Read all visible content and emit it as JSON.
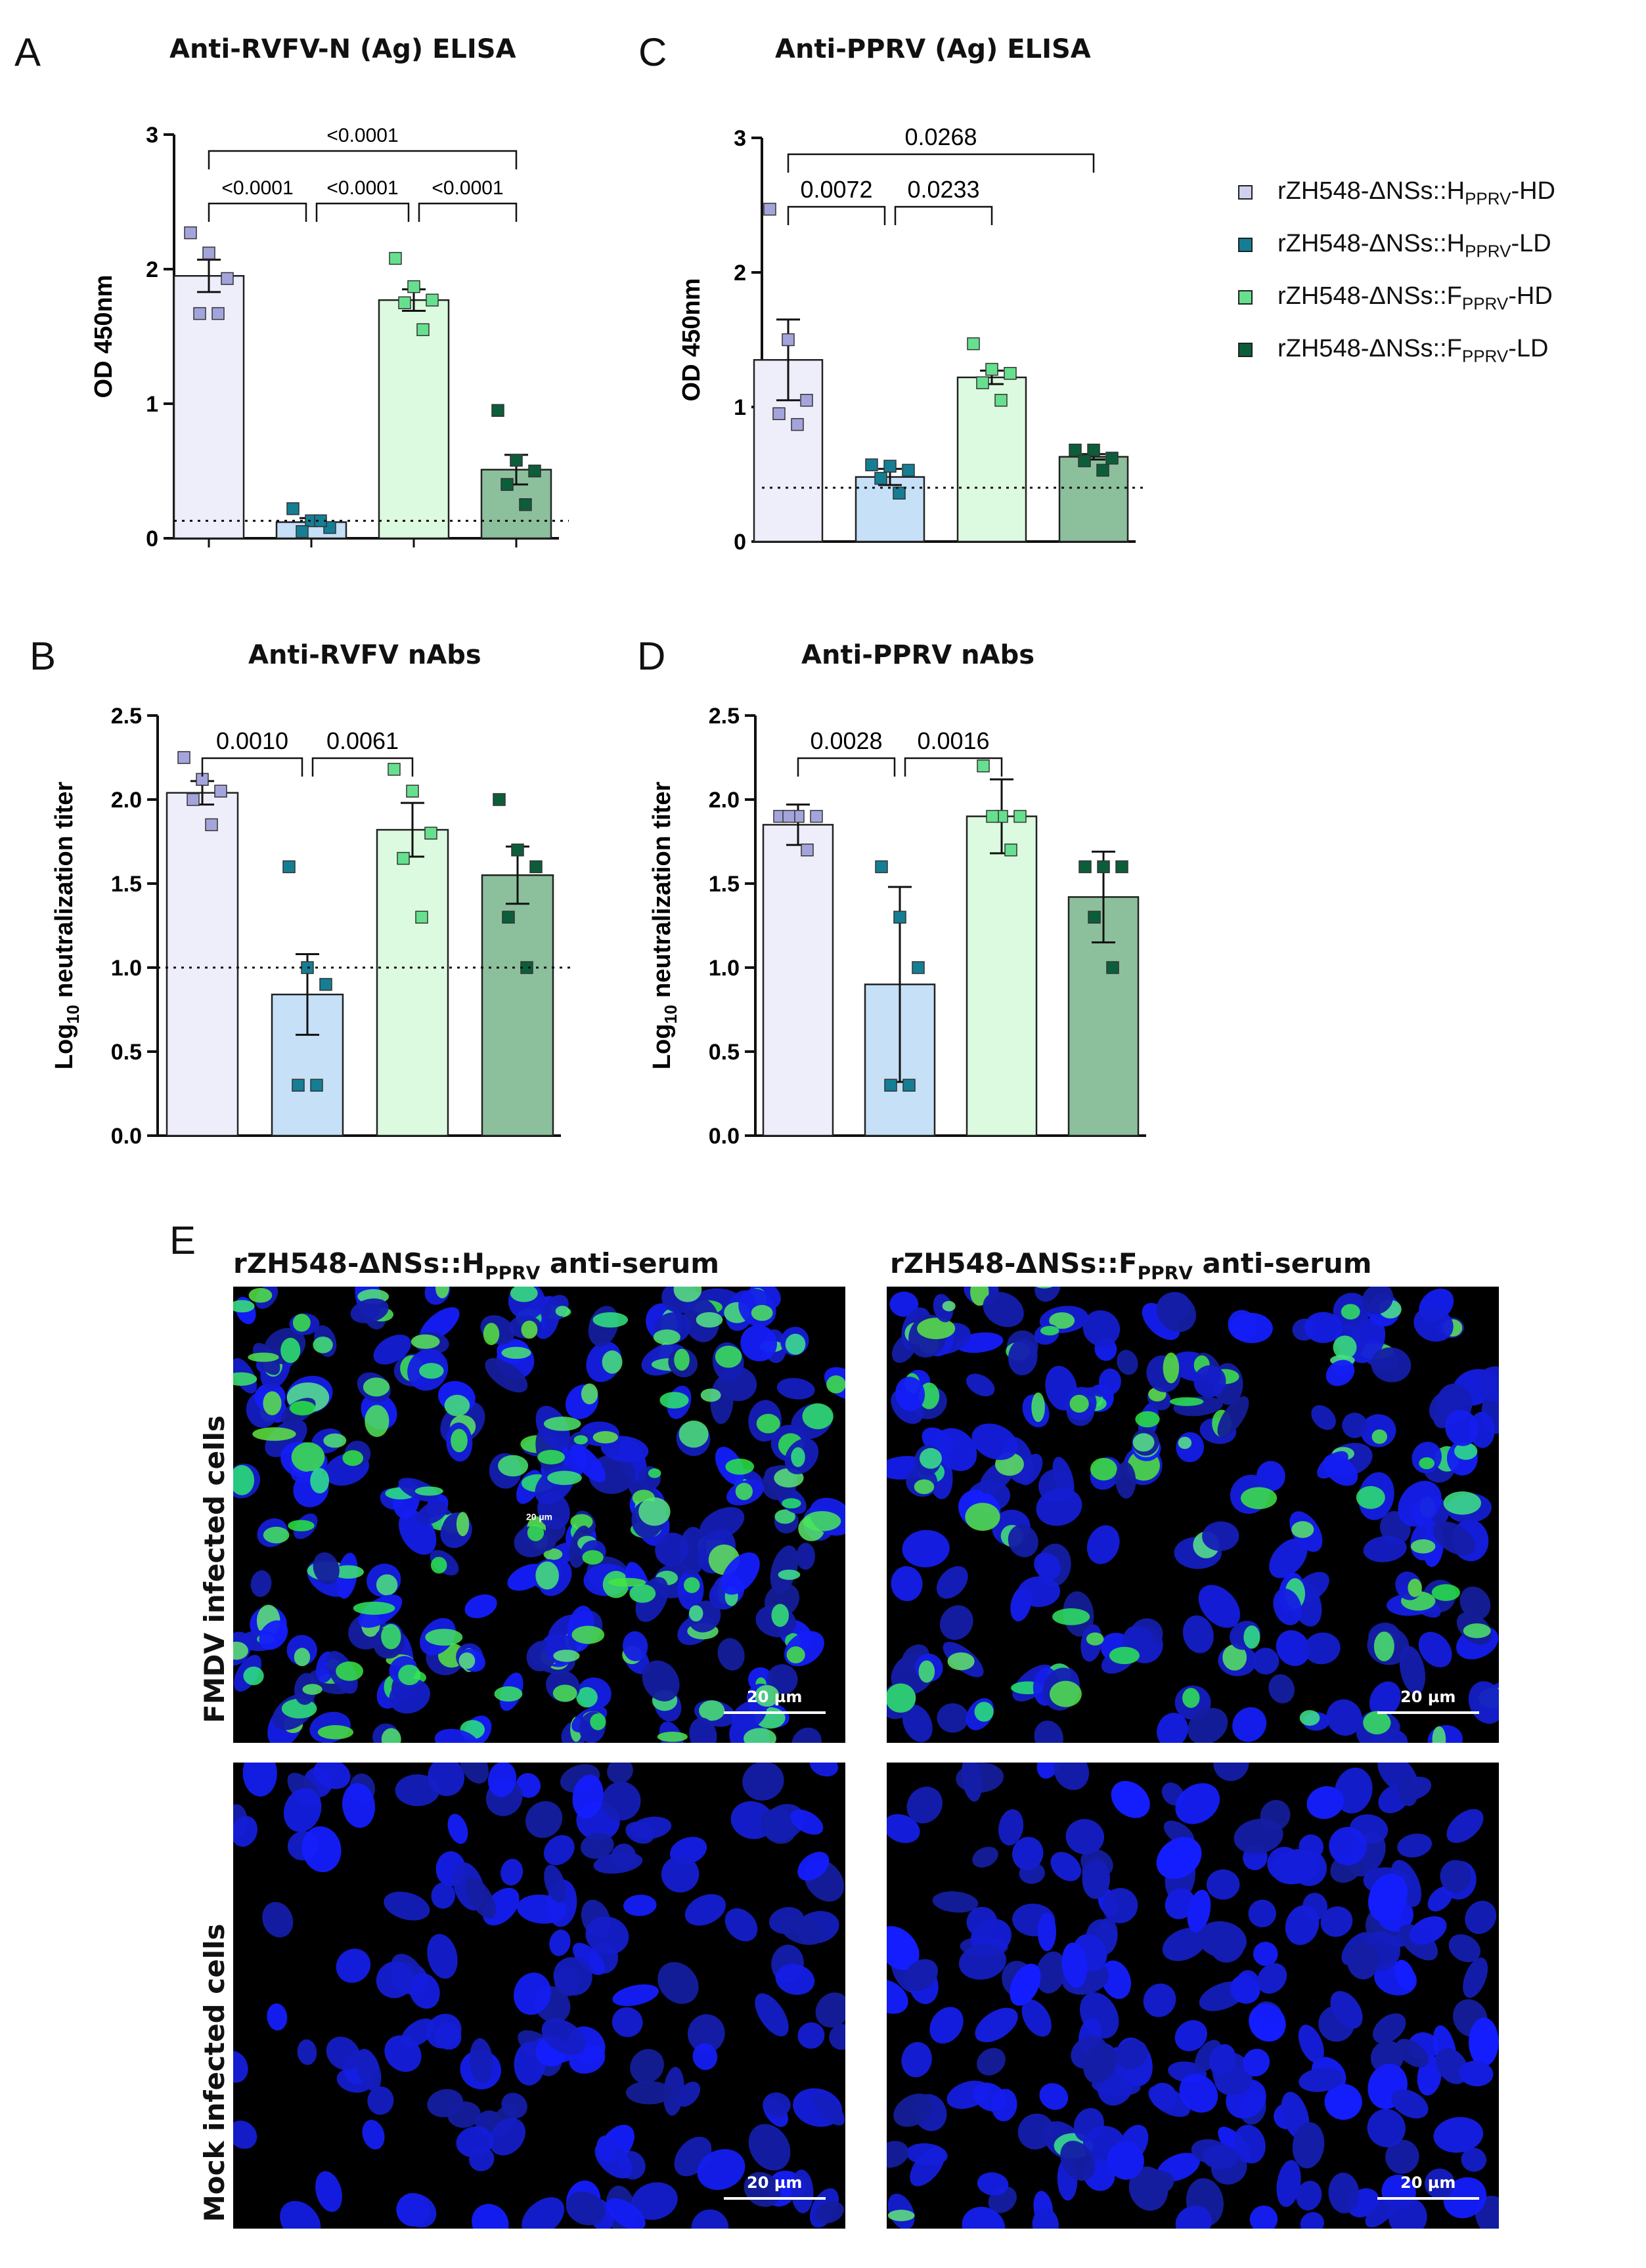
{
  "colors": {
    "H_HD": "#eeeefb",
    "H_LD": "#c5e0f7",
    "F_HD": "#dcfadf",
    "F_LD": "#8cc09c",
    "pt_H_HD": "#a4a4dc",
    "pt_H_LD": "#157e95",
    "pt_F_HD": "#66e08f",
    "pt_F_LD": "#0c5e3a"
  },
  "legend": [
    {
      "prefix": "rZH548-ΔNSs::H",
      "sub": "PPRV",
      "suffix": "-HD",
      "color": "#d0d0f0"
    },
    {
      "prefix": "rZH548-ΔNSs::H",
      "sub": "PPRV",
      "suffix": "-LD",
      "color": "#157e95"
    },
    {
      "prefix": "rZH548-ΔNSs::F",
      "sub": "PPRV",
      "suffix": "-HD",
      "color": "#66e08f"
    },
    {
      "prefix": "rZH548-ΔNSs::F",
      "sub": "PPRV",
      "suffix": "-LD",
      "color": "#0c5e3a"
    }
  ],
  "chart_data": [
    {
      "panel": "A",
      "type": "bar",
      "title": "Anti-RVFV-N (Ag) ELISA",
      "ylabel": "OD 450nm",
      "ylim": [
        0,
        3
      ],
      "yticks": [
        "0",
        "1",
        "2",
        "3"
      ],
      "cutoff": 0.13,
      "bars": [
        {
          "value": 1.95,
          "err": 0.12,
          "points": [
            2.27,
            2.12,
            1.93,
            1.67,
            1.67
          ]
        },
        {
          "value": 0.12,
          "err": 0.03,
          "points": [
            0.22,
            0.13,
            0.08,
            0.05,
            0.13
          ]
        },
        {
          "value": 1.77,
          "err": 0.08,
          "points": [
            2.08,
            1.87,
            1.77,
            1.75,
            1.55
          ]
        },
        {
          "value": 0.51,
          "err": 0.11,
          "points": [
            0.95,
            0.58,
            0.5,
            0.4,
            0.25
          ]
        }
      ],
      "brackets": [
        {
          "from": 0,
          "to": 3,
          "level": 2,
          "label": "<0.0001"
        },
        {
          "from": 0,
          "to": 1,
          "level": 1,
          "label": "<0.0001"
        },
        {
          "from": 1,
          "to": 2,
          "level": 1,
          "label": "<0.0001"
        },
        {
          "from": 2,
          "to": 3,
          "level": 1,
          "label": "<0.0001"
        }
      ]
    },
    {
      "panel": "C",
      "type": "bar",
      "title": "Anti-PPRV (Ag) ELISA",
      "ylabel": "OD 450nm",
      "ylim": [
        0,
        3
      ],
      "yticks": [
        "0",
        "1",
        "2",
        "3"
      ],
      "cutoff": 0.4,
      "bars": [
        {
          "value": 1.35,
          "err": 0.3,
          "points": [
            2.47,
            1.5,
            1.05,
            0.95,
            0.87
          ]
        },
        {
          "value": 0.48,
          "err": 0.06,
          "points": [
            0.57,
            0.56,
            0.53,
            0.47,
            0.36
          ]
        },
        {
          "value": 1.22,
          "err": 0.05,
          "points": [
            1.47,
            1.28,
            1.25,
            1.18,
            1.05
          ]
        },
        {
          "value": 0.63,
          "err": 0.02,
          "points": [
            0.68,
            0.68,
            0.62,
            0.6,
            0.53
          ]
        }
      ],
      "brackets": [
        {
          "from": 0,
          "to": 3,
          "level": 2,
          "label": "0.0268"
        },
        {
          "from": 0,
          "to": 1,
          "level": 1,
          "label": "0.0072"
        },
        {
          "from": 1,
          "to": 2,
          "level": 1,
          "label": "0.0233"
        }
      ]
    },
    {
      "panel": "B",
      "type": "bar",
      "title": "Anti-RVFV nAbs",
      "ylabel": "Log",
      "ylabel_sub": "10",
      "ylabel_rest": " neutralization titer",
      "ylim": [
        0,
        2.5
      ],
      "yticks": [
        "0.0",
        "0.5",
        "1.0",
        "1.5",
        "2.0",
        "2.5"
      ],
      "cutoff": 1.0,
      "bars": [
        {
          "value": 2.04,
          "err": 0.07,
          "points": [
            2.25,
            2.12,
            2.05,
            2.0,
            1.85
          ]
        },
        {
          "value": 0.84,
          "err": 0.24,
          "points": [
            1.6,
            1.0,
            0.9,
            0.3,
            0.3
          ]
        },
        {
          "value": 1.82,
          "err": 0.16,
          "points": [
            2.18,
            2.05,
            1.8,
            1.65,
            1.3
          ]
        },
        {
          "value": 1.55,
          "err": 0.17,
          "points": [
            2.0,
            1.7,
            1.6,
            1.3,
            1.0
          ]
        }
      ],
      "brackets": [
        {
          "from": 0,
          "to": 1,
          "level": 1,
          "label": "0.0010"
        },
        {
          "from": 1,
          "to": 2,
          "level": 1,
          "label": "0.0061"
        }
      ]
    },
    {
      "panel": "D",
      "type": "bar",
      "title": "Anti-PPRV nAbs",
      "ylabel": "Log",
      "ylabel_sub": "10",
      "ylabel_rest": " neutralization titer",
      "ylim": [
        0,
        2.5
      ],
      "yticks": [
        "0.0",
        "0.5",
        "1.0",
        "1.5",
        "2.0",
        "2.5"
      ],
      "cutoff": null,
      "bars": [
        {
          "value": 1.85,
          "err": 0.12,
          "points": [
            1.9,
            1.9,
            1.9,
            1.9,
            1.7
          ]
        },
        {
          "value": 0.9,
          "err": 0.58,
          "points": [
            1.6,
            1.3,
            1.0,
            0.3,
            0.3
          ]
        },
        {
          "value": 1.9,
          "err": 0.22,
          "points": [
            2.2,
            1.9,
            1.9,
            1.9,
            1.7
          ]
        },
        {
          "value": 1.42,
          "err": 0.27,
          "points": [
            1.6,
            1.6,
            1.6,
            1.3,
            1.0
          ]
        }
      ],
      "brackets": [
        {
          "from": 0,
          "to": 1,
          "level": 1,
          "label": "0.0028"
        },
        {
          "from": 1,
          "to": 2,
          "level": 1,
          "label": "0.0016"
        }
      ]
    }
  ],
  "panelE": {
    "letter": "E",
    "col1": {
      "prefix": "rZH548-ΔNSs::H",
      "sub": "PPRV",
      "suffix": " anti-serum"
    },
    "col2": {
      "prefix": "rZH548-ΔNSs::F",
      "sub": "PPRV",
      "suffix": " anti-serum"
    },
    "row1": "FMDV infected cells",
    "row2": "Mock infected cells",
    "scale": "20 µm",
    "inset_label": "20 µm"
  }
}
